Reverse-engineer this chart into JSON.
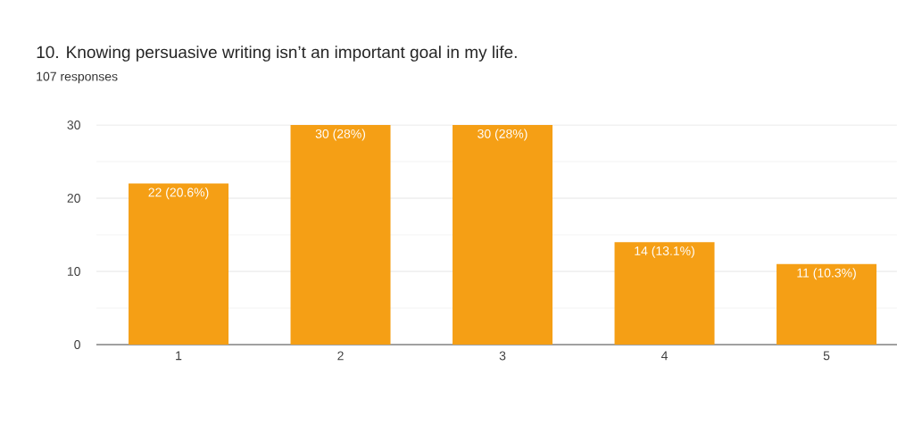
{
  "chart_data": {
    "type": "bar",
    "title": "10. Knowing persuasive writing isn’t an important goal in my life.",
    "subtitle": "107 responses",
    "categories": [
      "1",
      "2",
      "3",
      "4",
      "5"
    ],
    "values": [
      22,
      30,
      30,
      14,
      11
    ],
    "value_labels": [
      "22 (20.6%)",
      "30 (28%)",
      "30 (28%)",
      "14 (13.1%)",
      "11 (10.3%)"
    ],
    "color": "#f59f15",
    "ylim": [
      0,
      30
    ],
    "yticks": [
      0,
      10,
      20,
      30
    ],
    "grid": "y"
  }
}
